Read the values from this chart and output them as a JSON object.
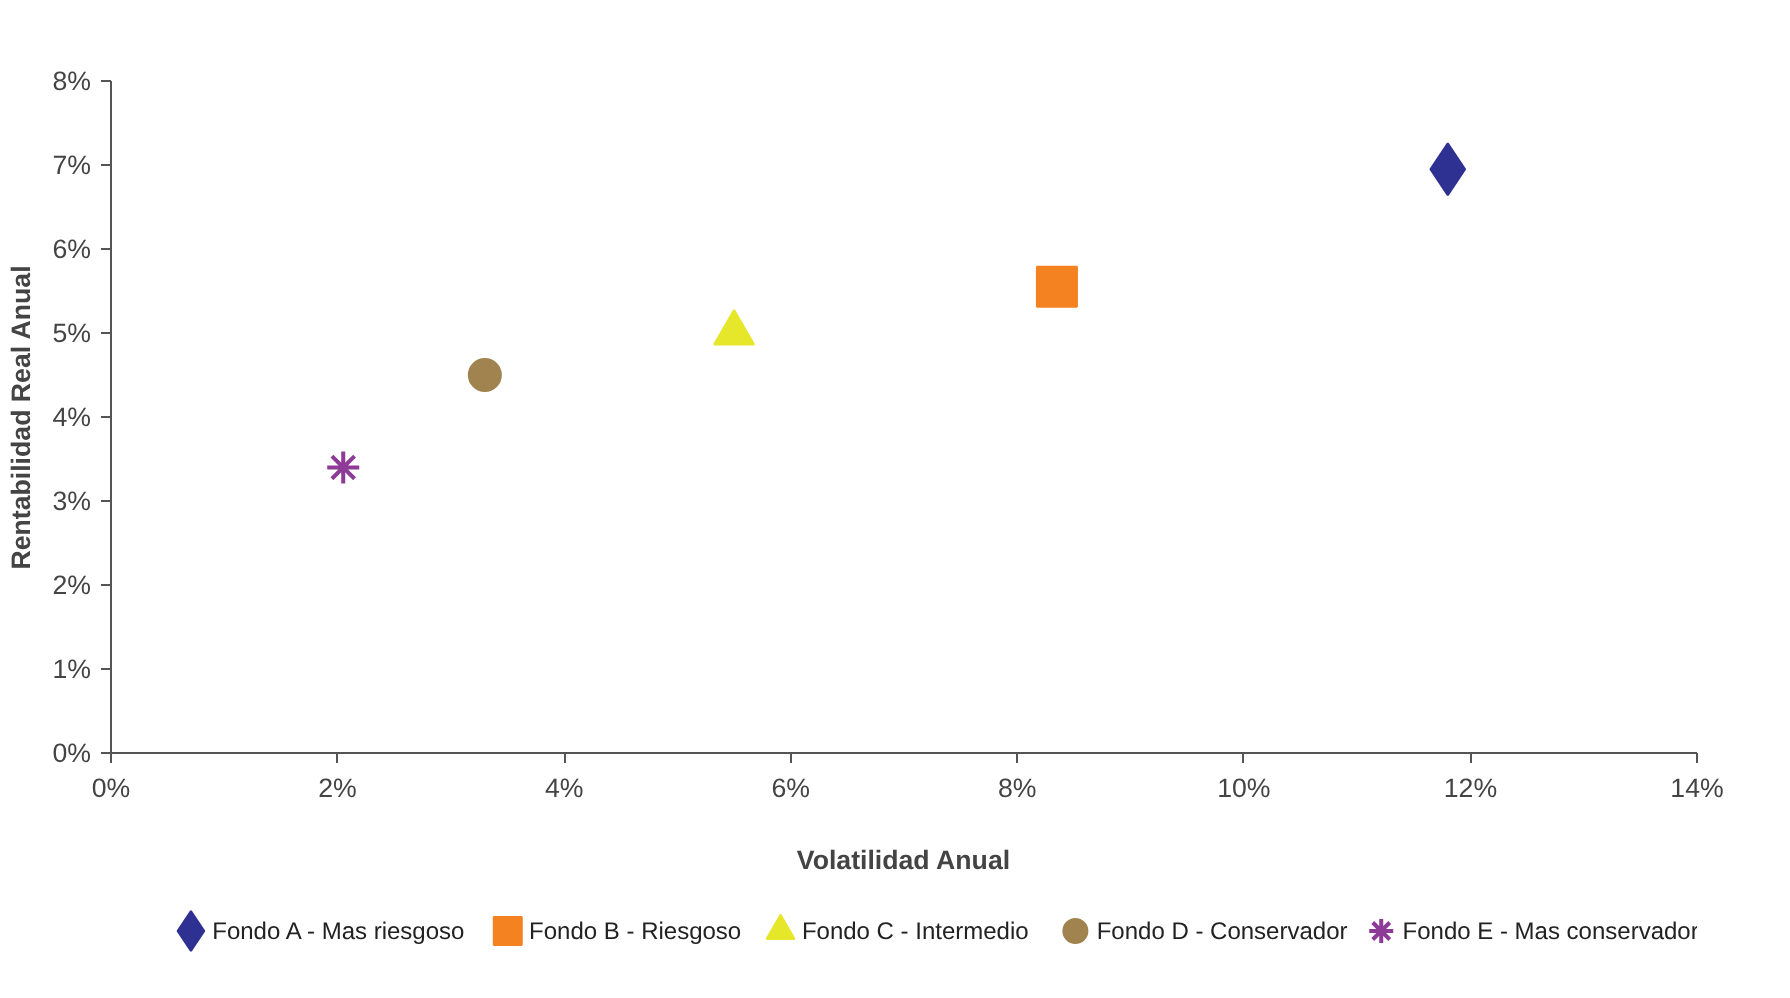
{
  "chart_data": {
    "type": "scatter",
    "xlabel": "Volatilidad Anual",
    "ylabel": "Rentabilidad Real Anual",
    "xlim": [
      0,
      14
    ],
    "ylim": [
      0,
      8
    ],
    "xticks": [
      {
        "value": 0,
        "label": "0%"
      },
      {
        "value": 2,
        "label": "2%"
      },
      {
        "value": 4,
        "label": "4%"
      },
      {
        "value": 6,
        "label": "6%"
      },
      {
        "value": 8,
        "label": "8%"
      },
      {
        "value": 10,
        "label": "10%"
      },
      {
        "value": 12,
        "label": "12%"
      },
      {
        "value": 14,
        "label": "14%"
      }
    ],
    "yticks": [
      {
        "value": 0,
        "label": "0%"
      },
      {
        "value": 1,
        "label": "1%"
      },
      {
        "value": 2,
        "label": "2%"
      },
      {
        "value": 3,
        "label": "3%"
      },
      {
        "value": 4,
        "label": "4%"
      },
      {
        "value": 5,
        "label": "5%"
      },
      {
        "value": 6,
        "label": "6%"
      },
      {
        "value": 7,
        "label": "7%"
      },
      {
        "value": 8,
        "label": "8%"
      }
    ],
    "grid": false,
    "legend": "bottom",
    "series": [
      {
        "name": "Fondo A - Mas riesgoso",
        "color": "#2e3192",
        "marker": "diamond",
        "x": [
          11.8
        ],
        "values": [
          6.95
        ]
      },
      {
        "name": "Fondo B - Riesgoso",
        "color": "#f58220",
        "marker": "square",
        "x": [
          8.35
        ],
        "values": [
          5.55
        ]
      },
      {
        "name": "Fondo C - Intermedio",
        "color": "#e6e62a",
        "marker": "triangle",
        "x": [
          5.5
        ],
        "values": [
          5.0
        ]
      },
      {
        "name": "Fondo D - Conservador",
        "color": "#a0834f",
        "marker": "circle",
        "x": [
          3.3
        ],
        "values": [
          4.5
        ]
      },
      {
        "name": "Fondo E - Mas conservador",
        "color": "#8e3a97",
        "marker": "cross",
        "x": [
          2.05
        ],
        "values": [
          3.4
        ]
      }
    ]
  }
}
